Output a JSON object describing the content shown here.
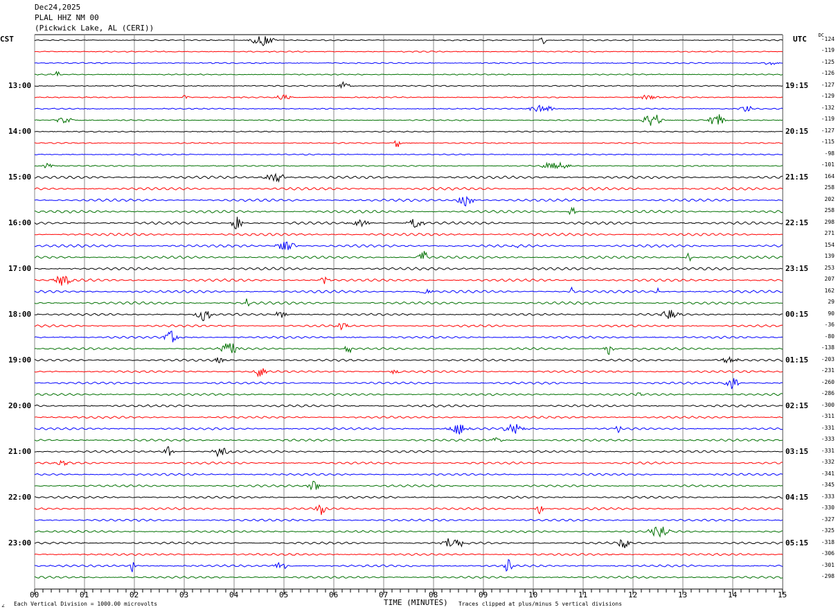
{
  "header": {
    "date": "Dec24,2025",
    "station": "PLAL HHZ NM 00",
    "location": "(Pickwick Lake, AL (CERI))"
  },
  "left_axis_title": "CST",
  "right_axis_title": "UTC",
  "dc_title": "DC",
  "chart_data": {
    "type": "line",
    "title": "PLAL HHZ NM 00 helicorder",
    "xlabel": "TIME (MINUTES)",
    "x_ticks": [
      "00",
      "01",
      "02",
      "03",
      "04",
      "05",
      "06",
      "07",
      "08",
      "09",
      "10",
      "11",
      "12",
      "13",
      "14",
      "15"
    ],
    "xlim": [
      0,
      15
    ],
    "rows_per_hour": 4,
    "trace_colors": [
      "#000000",
      "#ff0000",
      "#0000ff",
      "#007000"
    ],
    "cst_labels": [
      "13:00",
      "14:00",
      "15:00",
      "16:00",
      "17:00",
      "18:00",
      "19:00",
      "20:00",
      "21:00",
      "22:00",
      "23:00"
    ],
    "utc_labels": [
      "19:15",
      "20:15",
      "21:15",
      "22:15",
      "23:15",
      "00:15",
      "01:15",
      "02:15",
      "03:15",
      "04:15",
      "05:15"
    ],
    "dc_offsets": [
      "-124",
      "-119",
      "-125",
      "-126",
      "-127",
      "-129",
      "-132",
      "-119",
      "-127",
      "-115",
      "-98",
      "-101",
      "164",
      "258",
      "202",
      "258",
      "298",
      "271",
      "154",
      "139",
      "253",
      "207",
      "162",
      "29",
      "90",
      "-36",
      "-80",
      "-138",
      "-203",
      "-231",
      "-260",
      "-286",
      "-300",
      "-311",
      "-331",
      "-333",
      "-331",
      "-332",
      "-341",
      "-345",
      "-333",
      "-330",
      "-327",
      "-325",
      "-318",
      "-306",
      "-301",
      "-298"
    ]
  },
  "footer": {
    "scale_note": "Each Vertical Division = 1000.00 microvolts",
    "clip_note": "Traces clipped at plus/minus 5 vertical divisions",
    "corner_mark": "∠"
  }
}
